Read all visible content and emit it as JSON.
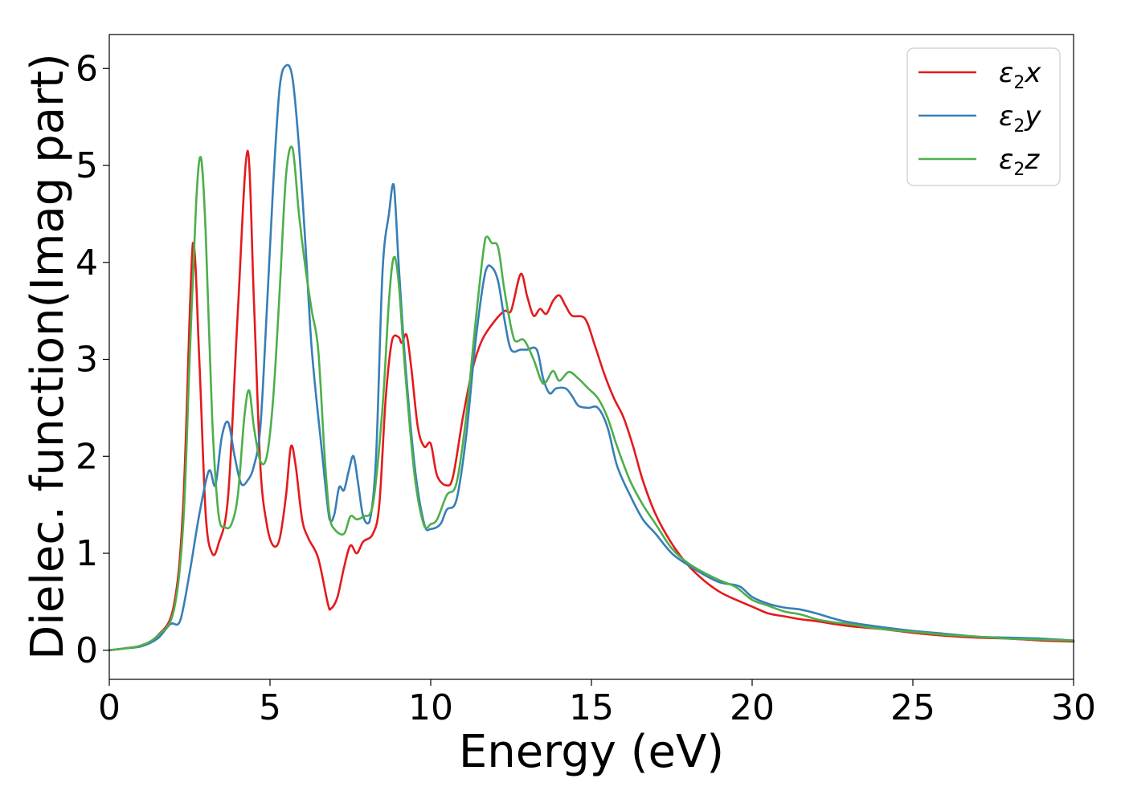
{
  "chart_data": {
    "type": "line",
    "title": "",
    "xlabel": "Energy (eV)",
    "ylabel": "Dielec. function(Imag part)",
    "xlim": [
      0,
      30
    ],
    "ylim": [
      -0.3,
      6.35
    ],
    "xticks": [
      0,
      5,
      10,
      15,
      20,
      25,
      30
    ],
    "xtick_labels": [
      "0",
      "5",
      "10",
      "15",
      "20",
      "25",
      "30"
    ],
    "yticks": [
      0,
      1,
      2,
      3,
      4,
      5,
      6
    ],
    "ytick_labels": [
      "0",
      "1",
      "2",
      "3",
      "4",
      "5",
      "6"
    ],
    "grid": false,
    "legend_position": "top-right",
    "series": [
      {
        "name": "ε₂x",
        "legend_main": "ε",
        "legend_sub": "2",
        "legend_suffix": "x",
        "color": "#e41a1c",
        "points": [
          [
            0,
            0
          ],
          [
            0.5,
            0.02
          ],
          [
            1.0,
            0.05
          ],
          [
            1.5,
            0.15
          ],
          [
            2.0,
            0.45
          ],
          [
            2.3,
            1.5
          ],
          [
            2.6,
            4.2
          ],
          [
            2.8,
            3.0
          ],
          [
            3.0,
            1.4
          ],
          [
            3.2,
            1.0
          ],
          [
            3.4,
            1.1
          ],
          [
            3.7,
            1.6
          ],
          [
            4.0,
            3.5
          ],
          [
            4.3,
            5.15
          ],
          [
            4.5,
            3.6
          ],
          [
            4.7,
            1.9
          ],
          [
            4.9,
            1.3
          ],
          [
            5.1,
            1.08
          ],
          [
            5.3,
            1.15
          ],
          [
            5.5,
            1.6
          ],
          [
            5.65,
            2.1
          ],
          [
            5.8,
            1.9
          ],
          [
            6.0,
            1.35
          ],
          [
            6.2,
            1.15
          ],
          [
            6.5,
            0.95
          ],
          [
            6.8,
            0.48
          ],
          [
            6.9,
            0.43
          ],
          [
            7.1,
            0.55
          ],
          [
            7.3,
            0.85
          ],
          [
            7.5,
            1.08
          ],
          [
            7.7,
            1.0
          ],
          [
            7.9,
            1.12
          ],
          [
            8.2,
            1.2
          ],
          [
            8.4,
            1.5
          ],
          [
            8.6,
            2.6
          ],
          [
            8.8,
            3.2
          ],
          [
            9.0,
            3.23
          ],
          [
            9.1,
            3.17
          ],
          [
            9.25,
            3.25
          ],
          [
            9.4,
            2.9
          ],
          [
            9.6,
            2.3
          ],
          [
            9.8,
            2.1
          ],
          [
            10.0,
            2.13
          ],
          [
            10.2,
            1.8
          ],
          [
            10.5,
            1.7
          ],
          [
            10.7,
            1.8
          ],
          [
            11.0,
            2.4
          ],
          [
            11.3,
            2.9
          ],
          [
            11.6,
            3.2
          ],
          [
            12.0,
            3.4
          ],
          [
            12.3,
            3.5
          ],
          [
            12.5,
            3.5
          ],
          [
            12.8,
            3.88
          ],
          [
            13.0,
            3.65
          ],
          [
            13.2,
            3.45
          ],
          [
            13.4,
            3.52
          ],
          [
            13.6,
            3.47
          ],
          [
            13.8,
            3.6
          ],
          [
            14.0,
            3.66
          ],
          [
            14.2,
            3.55
          ],
          [
            14.4,
            3.45
          ],
          [
            14.8,
            3.42
          ],
          [
            15.1,
            3.15
          ],
          [
            15.4,
            2.85
          ],
          [
            15.7,
            2.6
          ],
          [
            16.0,
            2.4
          ],
          [
            16.3,
            2.1
          ],
          [
            16.6,
            1.75
          ],
          [
            17.0,
            1.4
          ],
          [
            17.5,
            1.1
          ],
          [
            18.0,
            0.88
          ],
          [
            18.5,
            0.72
          ],
          [
            19.0,
            0.6
          ],
          [
            19.5,
            0.52
          ],
          [
            20.0,
            0.45
          ],
          [
            20.5,
            0.38
          ],
          [
            21.0,
            0.35
          ],
          [
            21.5,
            0.32
          ],
          [
            22.0,
            0.3
          ],
          [
            23.0,
            0.25
          ],
          [
            24.0,
            0.22
          ],
          [
            25.0,
            0.18
          ],
          [
            26.0,
            0.15
          ],
          [
            27.0,
            0.13
          ],
          [
            28.0,
            0.12
          ],
          [
            29.0,
            0.1
          ],
          [
            30.0,
            0.09
          ]
        ]
      },
      {
        "name": "ε₂y",
        "legend_main": "ε",
        "legend_sub": "2",
        "legend_suffix": "y",
        "color": "#377eb8",
        "points": [
          [
            0,
            0
          ],
          [
            0.5,
            0.02
          ],
          [
            1.0,
            0.04
          ],
          [
            1.5,
            0.12
          ],
          [
            1.9,
            0.27
          ],
          [
            2.2,
            0.3
          ],
          [
            2.5,
            0.8
          ],
          [
            2.8,
            1.4
          ],
          [
            3.1,
            1.85
          ],
          [
            3.3,
            1.7
          ],
          [
            3.5,
            2.2
          ],
          [
            3.7,
            2.35
          ],
          [
            3.9,
            2.0
          ],
          [
            4.1,
            1.72
          ],
          [
            4.3,
            1.75
          ],
          [
            4.5,
            1.9
          ],
          [
            4.7,
            2.3
          ],
          [
            4.9,
            3.5
          ],
          [
            5.1,
            4.8
          ],
          [
            5.3,
            5.8
          ],
          [
            5.5,
            6.03
          ],
          [
            5.7,
            5.9
          ],
          [
            5.9,
            5.2
          ],
          [
            6.1,
            4.2
          ],
          [
            6.3,
            3.1
          ],
          [
            6.6,
            2.1
          ],
          [
            6.85,
            1.35
          ],
          [
            7.0,
            1.4
          ],
          [
            7.15,
            1.68
          ],
          [
            7.3,
            1.65
          ],
          [
            7.45,
            1.85
          ],
          [
            7.6,
            2.0
          ],
          [
            7.75,
            1.7
          ],
          [
            7.9,
            1.38
          ],
          [
            8.1,
            1.33
          ],
          [
            8.3,
            2.0
          ],
          [
            8.5,
            3.9
          ],
          [
            8.7,
            4.5
          ],
          [
            8.85,
            4.8
          ],
          [
            9.0,
            4.0
          ],
          [
            9.2,
            3.0
          ],
          [
            9.5,
            1.9
          ],
          [
            9.8,
            1.3
          ],
          [
            10.0,
            1.25
          ],
          [
            10.3,
            1.3
          ],
          [
            10.5,
            1.45
          ],
          [
            10.8,
            1.55
          ],
          [
            11.1,
            2.2
          ],
          [
            11.4,
            3.2
          ],
          [
            11.7,
            3.9
          ],
          [
            11.9,
            3.95
          ],
          [
            12.1,
            3.8
          ],
          [
            12.3,
            3.4
          ],
          [
            12.5,
            3.1
          ],
          [
            12.8,
            3.1
          ],
          [
            13.0,
            3.1
          ],
          [
            13.3,
            3.1
          ],
          [
            13.5,
            2.8
          ],
          [
            13.7,
            2.65
          ],
          [
            13.9,
            2.7
          ],
          [
            14.2,
            2.7
          ],
          [
            14.4,
            2.62
          ],
          [
            14.6,
            2.52
          ],
          [
            14.9,
            2.5
          ],
          [
            15.2,
            2.5
          ],
          [
            15.5,
            2.3
          ],
          [
            15.8,
            1.9
          ],
          [
            16.2,
            1.6
          ],
          [
            16.6,
            1.35
          ],
          [
            17.0,
            1.2
          ],
          [
            17.5,
            1.0
          ],
          [
            18.0,
            0.88
          ],
          [
            18.5,
            0.78
          ],
          [
            19.0,
            0.7
          ],
          [
            19.6,
            0.66
          ],
          [
            20.0,
            0.55
          ],
          [
            20.5,
            0.48
          ],
          [
            21.0,
            0.44
          ],
          [
            21.5,
            0.42
          ],
          [
            22.0,
            0.38
          ],
          [
            22.5,
            0.33
          ],
          [
            23.0,
            0.29
          ],
          [
            24.0,
            0.24
          ],
          [
            25.0,
            0.2
          ],
          [
            26.0,
            0.17
          ],
          [
            27.0,
            0.14
          ],
          [
            28.0,
            0.13
          ],
          [
            29.0,
            0.12
          ],
          [
            30.0,
            0.1
          ]
        ]
      },
      {
        "name": "ε₂z",
        "legend_main": "ε",
        "legend_sub": "2",
        "legend_suffix": "z",
        "color": "#4daf4a",
        "points": [
          [
            0,
            0
          ],
          [
            0.5,
            0.02
          ],
          [
            1.0,
            0.05
          ],
          [
            1.5,
            0.15
          ],
          [
            2.0,
            0.4
          ],
          [
            2.3,
            1.3
          ],
          [
            2.5,
            3.0
          ],
          [
            2.7,
            4.6
          ],
          [
            2.85,
            5.08
          ],
          [
            3.0,
            4.3
          ],
          [
            3.2,
            2.4
          ],
          [
            3.4,
            1.4
          ],
          [
            3.6,
            1.27
          ],
          [
            3.8,
            1.3
          ],
          [
            4.0,
            1.6
          ],
          [
            4.2,
            2.4
          ],
          [
            4.35,
            2.68
          ],
          [
            4.5,
            2.3
          ],
          [
            4.7,
            1.95
          ],
          [
            4.9,
            2.0
          ],
          [
            5.1,
            2.6
          ],
          [
            5.3,
            3.7
          ],
          [
            5.5,
            4.9
          ],
          [
            5.7,
            5.18
          ],
          [
            5.9,
            4.5
          ],
          [
            6.1,
            3.95
          ],
          [
            6.3,
            3.5
          ],
          [
            6.5,
            3.1
          ],
          [
            6.7,
            2.0
          ],
          [
            6.85,
            1.4
          ],
          [
            7.0,
            1.25
          ],
          [
            7.3,
            1.2
          ],
          [
            7.5,
            1.38
          ],
          [
            7.7,
            1.35
          ],
          [
            7.9,
            1.38
          ],
          [
            8.2,
            1.5
          ],
          [
            8.5,
            2.5
          ],
          [
            8.7,
            3.6
          ],
          [
            8.85,
            4.05
          ],
          [
            9.0,
            3.8
          ],
          [
            9.2,
            2.9
          ],
          [
            9.5,
            1.8
          ],
          [
            9.8,
            1.28
          ],
          [
            10.0,
            1.3
          ],
          [
            10.2,
            1.35
          ],
          [
            10.5,
            1.6
          ],
          [
            10.8,
            1.72
          ],
          [
            11.1,
            2.4
          ],
          [
            11.4,
            3.4
          ],
          [
            11.7,
            4.25
          ],
          [
            11.9,
            4.2
          ],
          [
            12.1,
            4.15
          ],
          [
            12.3,
            3.7
          ],
          [
            12.6,
            3.2
          ],
          [
            12.9,
            3.2
          ],
          [
            13.2,
            3.0
          ],
          [
            13.5,
            2.75
          ],
          [
            13.8,
            2.88
          ],
          [
            14.0,
            2.78
          ],
          [
            14.3,
            2.87
          ],
          [
            14.6,
            2.8
          ],
          [
            14.9,
            2.7
          ],
          [
            15.2,
            2.6
          ],
          [
            15.5,
            2.4
          ],
          [
            15.8,
            2.1
          ],
          [
            16.2,
            1.75
          ],
          [
            16.6,
            1.5
          ],
          [
            17.0,
            1.3
          ],
          [
            17.5,
            1.05
          ],
          [
            18.0,
            0.9
          ],
          [
            18.5,
            0.8
          ],
          [
            19.0,
            0.72
          ],
          [
            19.5,
            0.65
          ],
          [
            20.0,
            0.52
          ],
          [
            20.5,
            0.46
          ],
          [
            21.0,
            0.4
          ],
          [
            21.5,
            0.37
          ],
          [
            22.0,
            0.32
          ],
          [
            22.5,
            0.29
          ],
          [
            23.0,
            0.27
          ],
          [
            24.0,
            0.22
          ],
          [
            25.0,
            0.19
          ],
          [
            26.0,
            0.16
          ],
          [
            27.0,
            0.14
          ],
          [
            28.0,
            0.12
          ],
          [
            29.0,
            0.11
          ],
          [
            30.0,
            0.1
          ]
        ]
      }
    ]
  }
}
